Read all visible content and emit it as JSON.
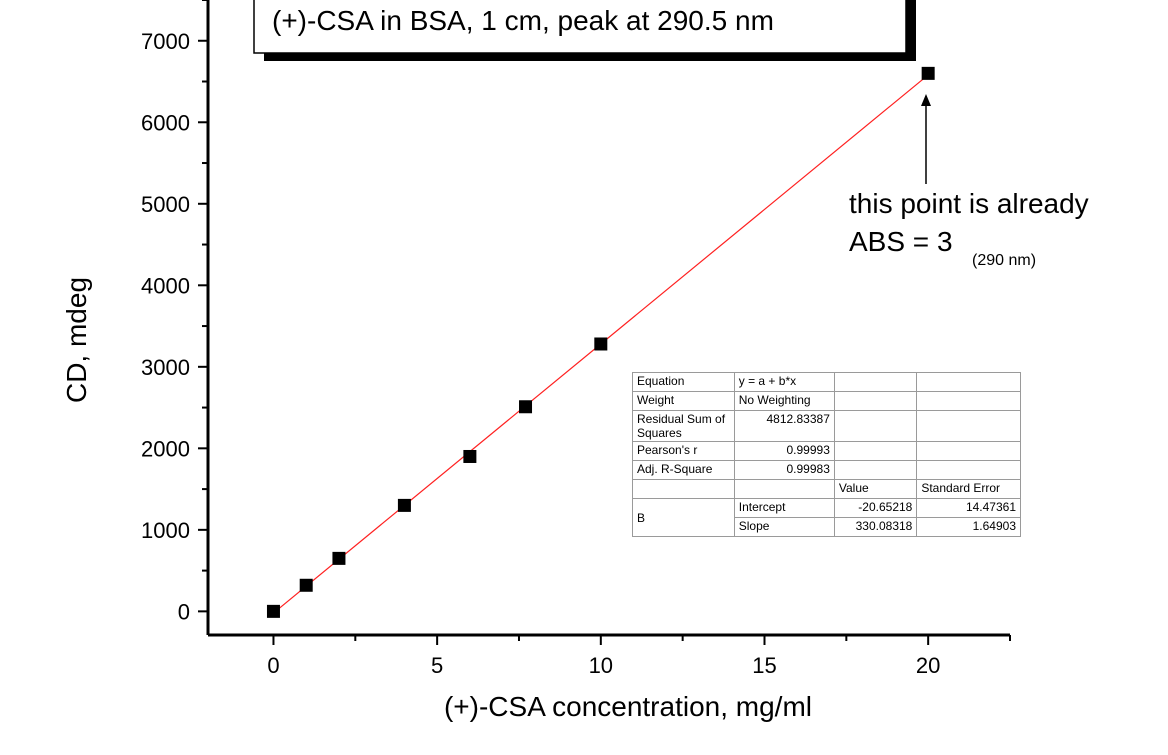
{
  "chart_data": {
    "type": "scatter",
    "title": "(+)-CSA in BSA, 1 cm, peak at 290.5 nm",
    "xlabel": "(+)-CSA concentration, mg/ml",
    "ylabel": "CD, mdeg",
    "xlim": [
      -2,
      22.5
    ],
    "ylim": [
      -290,
      7500
    ],
    "x_ticks": [
      0,
      5,
      10,
      15,
      20
    ],
    "y_ticks": [
      0,
      1000,
      2000,
      3000,
      4000,
      5000,
      6000,
      7000
    ],
    "x_tick_labels": [
      "0",
      "5",
      "10",
      "15",
      "20"
    ],
    "y_tick_labels": [
      "0",
      "1000",
      "2000",
      "3000",
      "4000",
      "5000",
      "6000",
      "7000"
    ],
    "grid": false,
    "series": [
      {
        "x": [
          0,
          1,
          2,
          4,
          6,
          7.7,
          10,
          20
        ],
        "y": [
          0,
          320,
          650,
          1300,
          1900,
          2510,
          3280,
          6600
        ],
        "marker": "square",
        "color": "#000000"
      }
    ],
    "fit_line": {
      "intercept": -20.65218,
      "slope": 330.08318,
      "x_range": [
        0,
        20
      ],
      "color": "#ff2020"
    },
    "annotation": {
      "line1": "this point is already",
      "line2": "ABS = 3",
      "sub": "(290 nm)",
      "arrow_to": {
        "x": 20,
        "y": 6600
      }
    },
    "fit_table": {
      "equation_label": "Equation",
      "equation_value": "y = a + b*x",
      "weight_label": "Weight",
      "weight_value": "No Weighting",
      "rss_label": "Residual Sum of Squares",
      "rss_value": "4812.83387",
      "pearson_label": "Pearson's r",
      "pearson_value": "0.99993",
      "adjr_label": "Adj. R-Square",
      "adjr_value": "0.99983",
      "col_value": "Value",
      "col_se": "Standard Error",
      "param_group": "B",
      "intercept_label": "Intercept",
      "intercept_value": "-20.65218",
      "intercept_se": "14.47361",
      "slope_label": "Slope",
      "slope_value": "330.08318",
      "slope_se": "1.64903"
    }
  }
}
